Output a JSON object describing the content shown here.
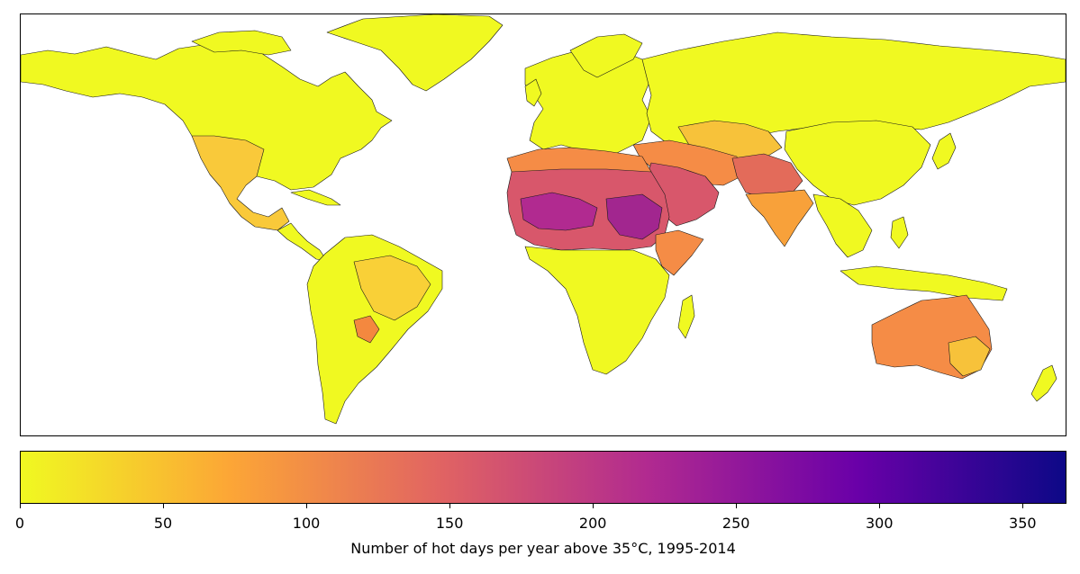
{
  "map": {
    "ocean_color": "#ffffff",
    "border_color": "#000000"
  },
  "colorbar": {
    "colormap": "plasma_r",
    "min": 0,
    "max": 365,
    "stops": [
      "#f0f921",
      "#fca636",
      "#e16462",
      "#b12a90",
      "#6a00a8",
      "#0d0887"
    ],
    "ticks": [
      {
        "value": 0,
        "label": "0"
      },
      {
        "value": 50,
        "label": "50"
      },
      {
        "value": 100,
        "label": "100"
      },
      {
        "value": 150,
        "label": "150"
      },
      {
        "value": 200,
        "label": "200"
      },
      {
        "value": 250,
        "label": "250"
      },
      {
        "value": 300,
        "label": "300"
      },
      {
        "value": 350,
        "label": "350"
      }
    ],
    "label": "Number of hot days per year above 35°C, 1995-2014"
  },
  "regions": [
    {
      "name": "North America",
      "fill": "#f0f921"
    },
    {
      "name": "Greenland",
      "fill": "#f0f921"
    },
    {
      "name": "Southwest US and Mexico",
      "fill": "#f9c93a"
    },
    {
      "name": "Central America",
      "fill": "#f0f921"
    },
    {
      "name": "South America",
      "fill": "#f0f921"
    },
    {
      "name": "Brazil interior",
      "fill": "#f9d037"
    },
    {
      "name": "Gran Chaco",
      "fill": "#f4883f"
    },
    {
      "name": "Europe",
      "fill": "#f0f921"
    },
    {
      "name": "Russia and Central Asia",
      "fill": "#f0f921"
    },
    {
      "name": "Central Asia steppe",
      "fill": "#f7c23a"
    },
    {
      "name": "Sahara and Sahel",
      "fill": "#d8576b"
    },
    {
      "name": "Western Sahel core",
      "fill": "#b12a90"
    },
    {
      "name": "Sudan core",
      "fill": "#a2268f"
    },
    {
      "name": "North Africa fringe",
      "fill": "#f58c46"
    },
    {
      "name": "Sub-Saharan Africa",
      "fill": "#f0f921"
    },
    {
      "name": "Horn of Africa",
      "fill": "#f58c46"
    },
    {
      "name": "Arabian Peninsula",
      "fill": "#d8576b"
    },
    {
      "name": "Middle East",
      "fill": "#f58c46"
    },
    {
      "name": "Pakistan and North India",
      "fill": "#e36b5a"
    },
    {
      "name": "India",
      "fill": "#f8a13a"
    },
    {
      "name": "Southeast Asia",
      "fill": "#f0f921"
    },
    {
      "name": "China and East Asia",
      "fill": "#f0f921"
    },
    {
      "name": "Indonesia",
      "fill": "#f0f921"
    },
    {
      "name": "Australia",
      "fill": "#f58c46"
    },
    {
      "name": "Southeast Australia",
      "fill": "#f7c23a"
    },
    {
      "name": "New Zealand",
      "fill": "#f0f921"
    },
    {
      "name": "Madagascar",
      "fill": "#f0f921"
    },
    {
      "name": "Japan",
      "fill": "#f0f921"
    }
  ]
}
